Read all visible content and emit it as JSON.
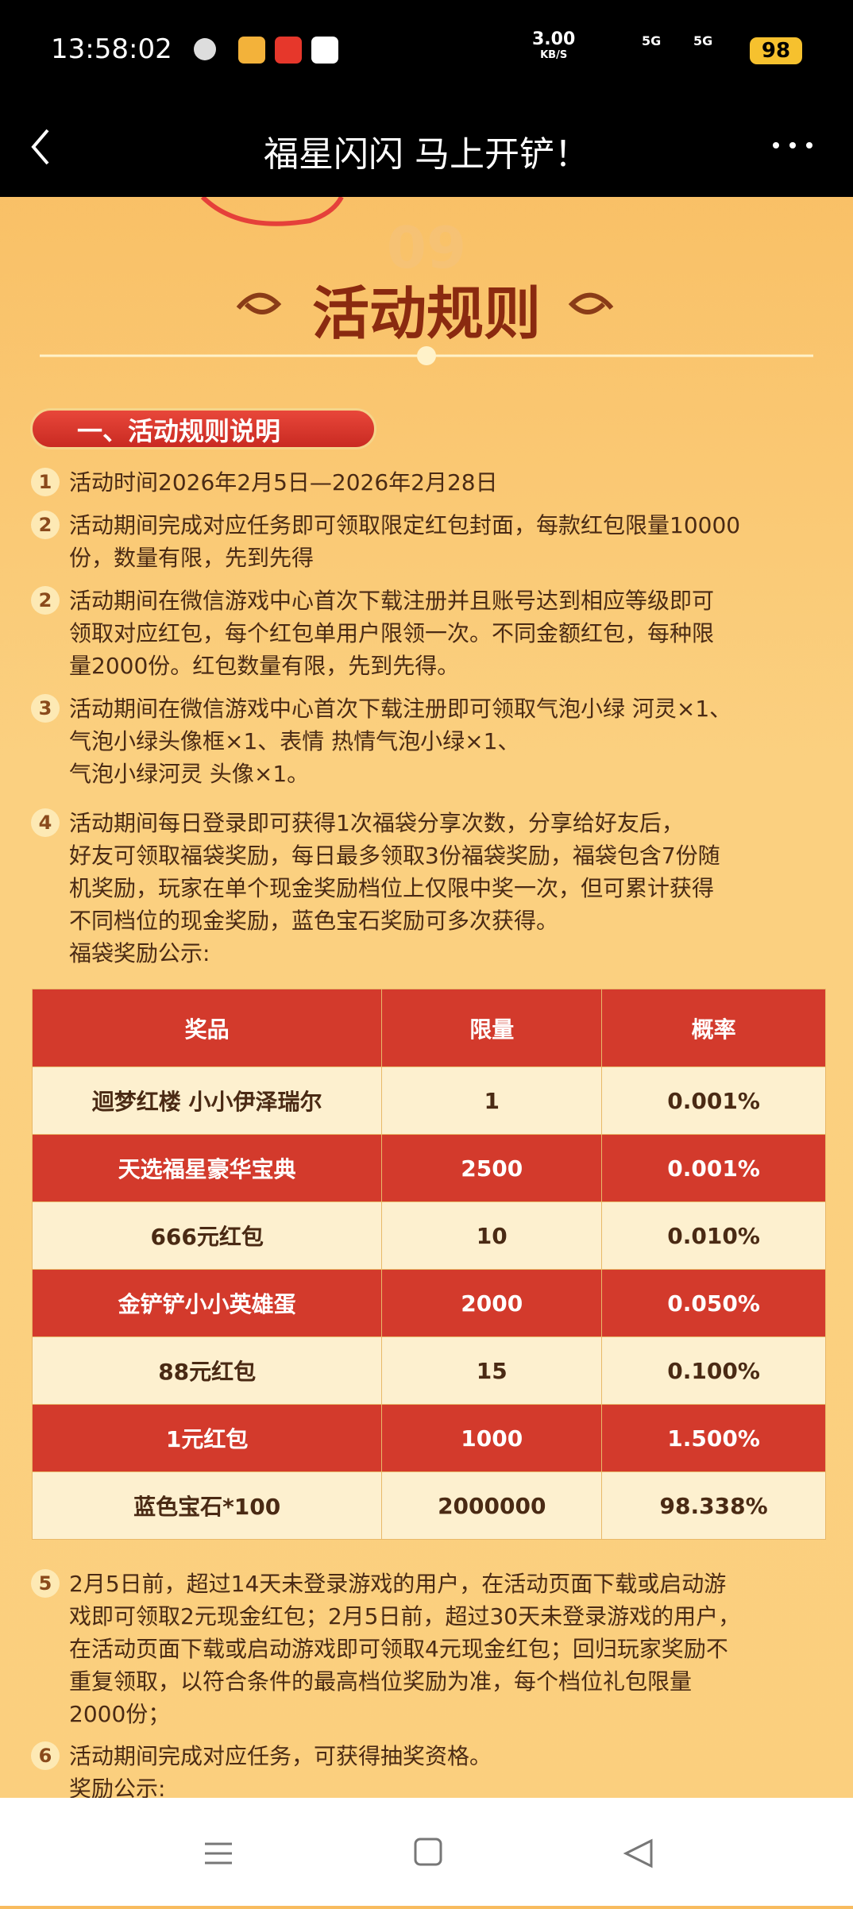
{
  "status_bar": {
    "time": "13:58:02",
    "speed": "3.00",
    "speed_unit": "KB/S",
    "network_1": "5G",
    "network_2": "5G",
    "battery": "98"
  },
  "nav": {
    "title": "福星闪闪 马上开铲！"
  },
  "banner": {
    "faded_number": "09",
    "heading": "活动规则"
  },
  "section": {
    "title": "一、活动规则说明"
  },
  "rules": [
    {
      "number": "1",
      "lines": [
        "活动时间2026年2月5日—2026年2月28日"
      ]
    },
    {
      "number": "2",
      "lines": [
        "活动期间完成对应任务即可领取限定红包封面，每款红包限量10000",
        "份，数量有限，先到先得"
      ]
    },
    {
      "number": "2",
      "lines": [
        "活动期间在微信游戏中心首次下载注册并且账号达到相应等级即可",
        "领取对应红包，每个红包单用户限领一次。不同金额红包，每种限",
        "量2000份。红包数量有限，先到先得。"
      ]
    },
    {
      "number": "3",
      "lines": [
        "活动期间在微信游戏中心首次下载注册即可领取气泡小绿 河灵×1、",
        "气泡小绿头像框×1、表情 热情气泡小绿×1、",
        "气泡小绿河灵 头像×1。"
      ]
    },
    {
      "number": "4",
      "lines": [
        "活动期间每日登录即可获得1次福袋分享次数，分享给好友后，",
        "好友可领取福袋奖励，每日最多领取3份福袋奖励，福袋包含7份随",
        "机奖励，玩家在单个现金奖励档位上仅限中奖一次，但可累计获得",
        "不同档位的现金奖励，蓝色宝石奖励可多次获得。",
        "福袋奖励公示:"
      ]
    },
    {
      "number": "5",
      "lines": [
        "2月5日前，超过14天未登录游戏的用户，在活动页面下载或启动游",
        "戏即可领取2元现金红包；2月5日前，超过30天未登录游戏的用户，",
        "在活动页面下载或启动游戏即可领取4元现金红包；回归玩家奖励不",
        "重复领取，以符合条件的最高档位奖励为准，每个档位礼包限量",
        "2000份；"
      ]
    },
    {
      "number": "6",
      "lines": [
        "活动期间完成对应任务，可获得抽奖资格。",
        "奖励公示:"
      ]
    }
  ],
  "table": {
    "header": [
      "奖品",
      "限量",
      "概率"
    ],
    "rows": [
      [
        "迴梦红楼 小小伊泽瑞尔",
        "1",
        "0.001%"
      ],
      [
        "天选福星豪华宝典",
        "2500",
        "0.001%"
      ],
      [
        "666元红包",
        "10",
        "0.010%"
      ],
      [
        "金铲铲小小英雄蛋",
        "2000",
        "0.050%"
      ],
      [
        "88元红包",
        "15",
        "0.100%"
      ],
      [
        "1元红包",
        "1000",
        "1.500%"
      ],
      [
        "蓝色宝石*100",
        "2000000",
        "98.338%"
      ]
    ]
  }
}
